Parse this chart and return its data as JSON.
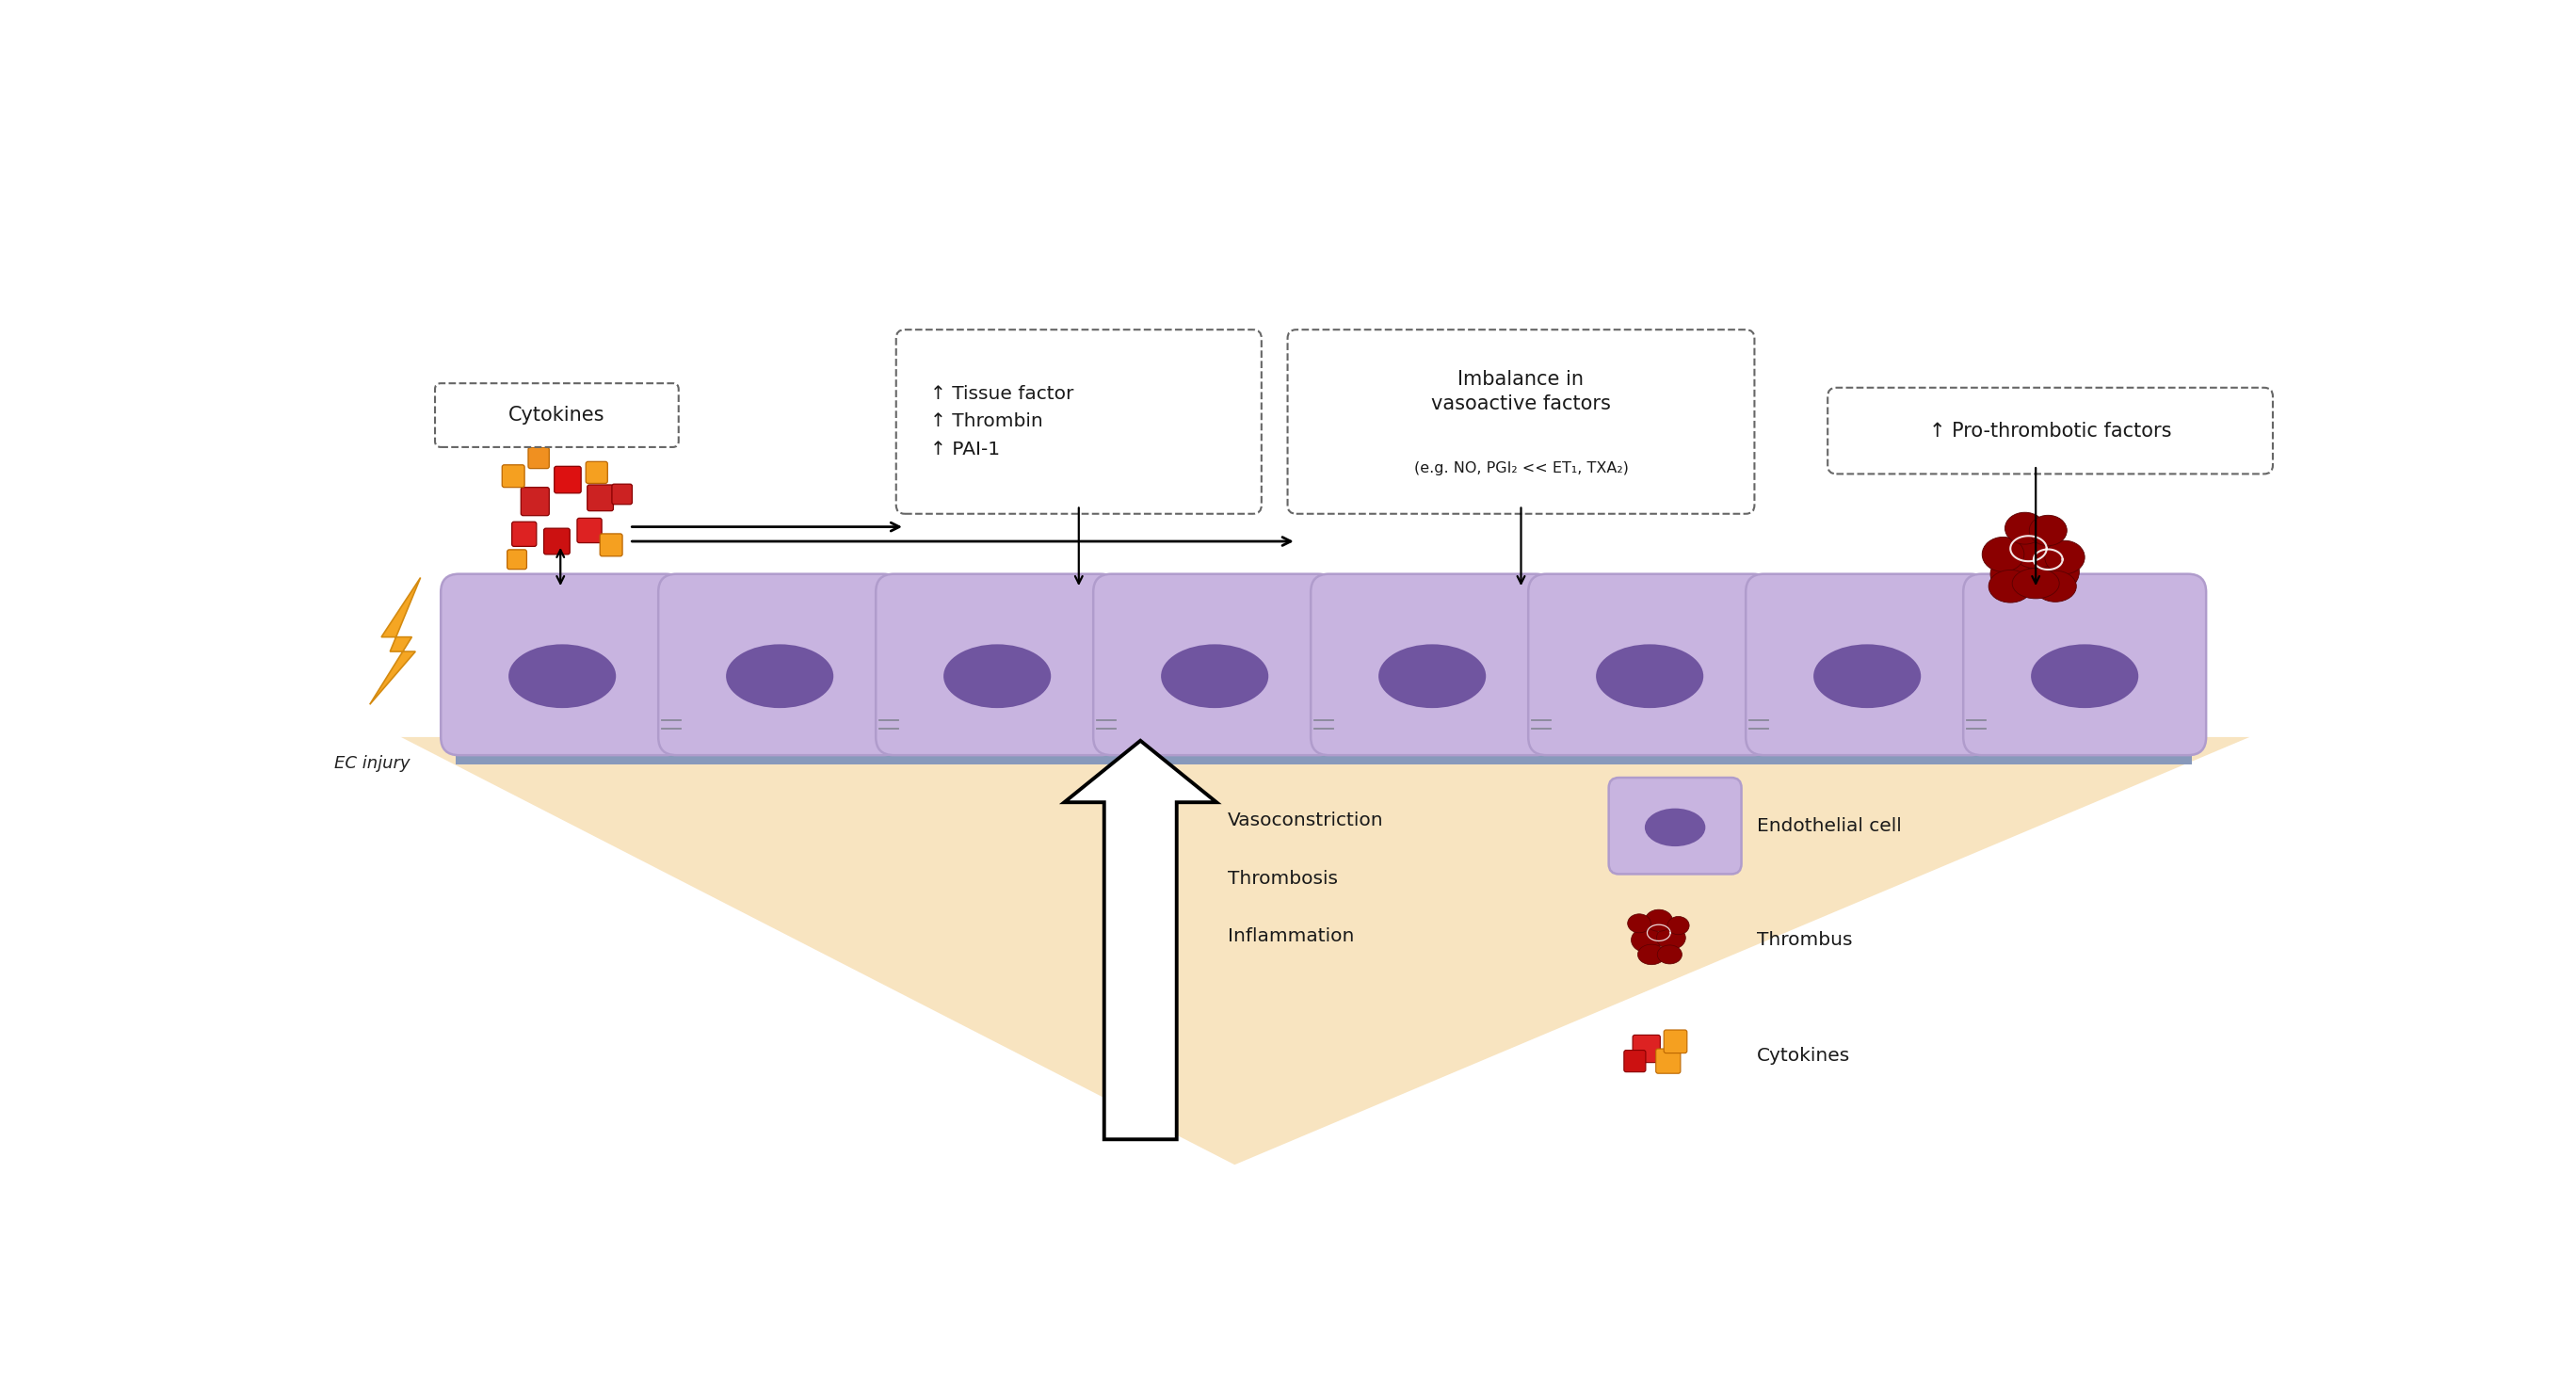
{
  "fig_width": 27.36,
  "fig_height": 14.68,
  "bg_color": "#ffffff",
  "cell_color": "#c8b4e0",
  "cell_border_color": "#b09ccc",
  "nucleus_color": "#7055a0",
  "base_color": "#7788aa",
  "triangle_color_light": "#fce8c8",
  "arrow_color": "#1a1a1a",
  "label_cytokines": "Cytokines",
  "label_tissue_box_line1": "↑ Tissue factor",
  "label_tissue_box_line2": "↑ Thrombin",
  "label_tissue_box_line3": "↑ PAI-1",
  "label_imbalance_title": "Imbalance in",
  "label_imbalance_title2": "vasoactive factors",
  "label_imbalance_sub": "(e.g. NO, PGI₂ << ET₁, TXA₂)",
  "label_pro_thrombotic": "↑ Pro-thrombotic factors",
  "label_ec_injury": "EC injury",
  "label_vasoconstriction": "Vasoconstriction",
  "label_thrombosis": "Thrombosis",
  "label_inflammation": "Inflammation",
  "legend_endothelial": "Endothelial cell",
  "legend_thrombus": "Thrombus",
  "legend_cytokines": "Cytokines",
  "dashed_box_color": "#666666",
  "text_color": "#1a1a1a",
  "thrombus_color": "#8b0000",
  "thrombus_edge": "#5a0000"
}
